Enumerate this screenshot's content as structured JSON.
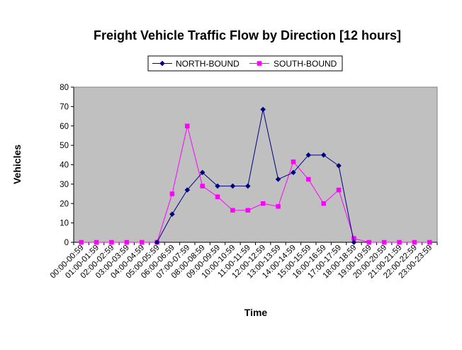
{
  "chart_data": {
    "type": "line",
    "title": "Freight Vehicle Traffic Flow by Direction [12 hours]",
    "xlabel": "Time",
    "ylabel": "Vehicles",
    "ylim": [
      0,
      80
    ],
    "yticks": [
      "0",
      "10",
      "20",
      "30",
      "40",
      "50",
      "60",
      "70",
      "80"
    ],
    "grid": false,
    "legend_position": "top",
    "plot_background": "#c0c0c0",
    "categories": [
      "00:00-00:59",
      "01:00-01:59",
      "02:00-02:59",
      "03:00-03:59",
      "04:00-04:59",
      "05:00-05:59",
      "06:00-06:59",
      "07:00-07:59",
      "08:00-08:59",
      "09:00-09:59",
      "10:00-10:59",
      "11:00-11:59",
      "12:00-12:59",
      "13:00-13:59",
      "14:00-14:59",
      "15:00-15:59",
      "16:00-16:59",
      "17:00-17:59",
      "18:00-18:59",
      "19:00-19:59",
      "20:00-20:59",
      "21:00-21:59",
      "22:00-22:59",
      "23:00-23:59"
    ],
    "series": [
      {
        "name": "NORTH-BOUND",
        "color": "#000080",
        "marker": "diamond",
        "values": [
          null,
          null,
          null,
          null,
          null,
          0,
          14.5,
          27,
          36,
          29,
          29,
          29,
          68.5,
          32.5,
          36,
          45,
          45,
          39.5,
          0,
          null,
          null,
          null,
          null,
          null
        ]
      },
      {
        "name": "SOUTH-BOUND",
        "color": "#ff00ff",
        "marker": "square",
        "values": [
          0,
          0,
          0,
          0,
          0,
          0,
          25,
          60,
          29,
          23.5,
          16.5,
          16.5,
          20,
          18.5,
          41.5,
          32.5,
          20,
          27,
          2,
          0,
          0,
          0,
          0,
          0
        ]
      }
    ]
  }
}
